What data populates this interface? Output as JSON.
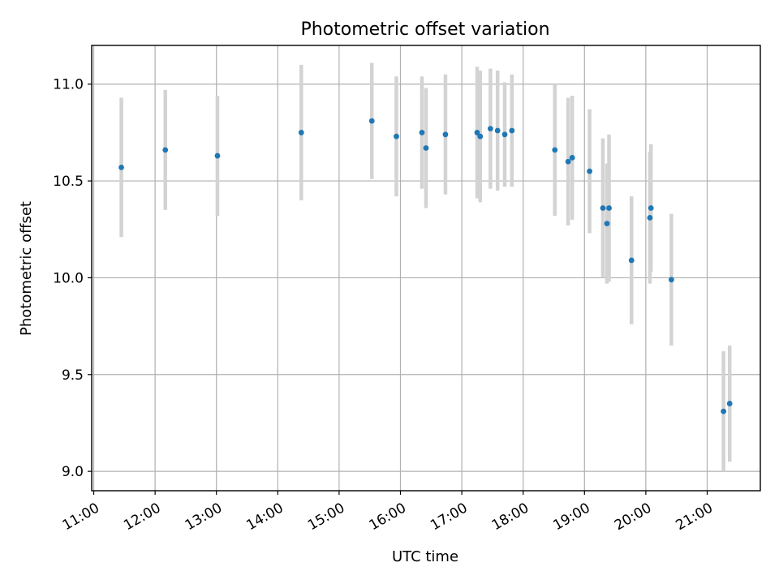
{
  "chart_data": {
    "type": "scatter",
    "title": "Photometric offset variation",
    "xlabel": "UTC time",
    "ylabel": "Photometric offset",
    "xlim": [
      "10:58",
      "21:52"
    ],
    "ylim": [
      8.9,
      11.2
    ],
    "x_ticks": [
      "11:00",
      "12:00",
      "13:00",
      "14:00",
      "15:00",
      "16:00",
      "17:00",
      "18:00",
      "19:00",
      "20:00",
      "21:00"
    ],
    "y_ticks": [
      "9.0",
      "9.5",
      "10.0",
      "10.5",
      "11.0"
    ],
    "grid": true,
    "error_bars": true,
    "points": [
      {
        "time": "11:27",
        "y": 10.57,
        "err": 0.36
      },
      {
        "time": "12:10",
        "y": 10.66,
        "err": 0.31
      },
      {
        "time": "13:01",
        "y": 10.63,
        "err": 0.31
      },
      {
        "time": "14:23",
        "y": 10.75,
        "err": 0.35
      },
      {
        "time": "15:32",
        "y": 10.81,
        "err": 0.3
      },
      {
        "time": "15:56",
        "y": 10.73,
        "err": 0.31
      },
      {
        "time": "16:21",
        "y": 10.75,
        "err": 0.29
      },
      {
        "time": "16:25",
        "y": 10.67,
        "err": 0.31
      },
      {
        "time": "16:44",
        "y": 10.74,
        "err": 0.31
      },
      {
        "time": "17:15",
        "y": 10.75,
        "err": 0.34
      },
      {
        "time": "17:18",
        "y": 10.73,
        "err": 0.34
      },
      {
        "time": "17:28",
        "y": 10.77,
        "err": 0.31
      },
      {
        "time": "17:35",
        "y": 10.76,
        "err": 0.31
      },
      {
        "time": "17:42",
        "y": 10.74,
        "err": 0.27
      },
      {
        "time": "17:49",
        "y": 10.76,
        "err": 0.29
      },
      {
        "time": "18:31",
        "y": 10.66,
        "err": 0.34
      },
      {
        "time": "18:44",
        "y": 10.6,
        "err": 0.33
      },
      {
        "time": "18:48",
        "y": 10.62,
        "err": 0.32
      },
      {
        "time": "19:05",
        "y": 10.55,
        "err": 0.32
      },
      {
        "time": "19:18",
        "y": 10.36,
        "err": 0.36
      },
      {
        "time": "19:22",
        "y": 10.28,
        "err": 0.31
      },
      {
        "time": "19:24",
        "y": 10.36,
        "err": 0.38
      },
      {
        "time": "19:46",
        "y": 10.09,
        "err": 0.33
      },
      {
        "time": "20:04",
        "y": 10.31,
        "err": 0.34
      },
      {
        "time": "20:05",
        "y": 10.36,
        "err": 0.33
      },
      {
        "time": "20:25",
        "y": 9.99,
        "err": 0.34
      },
      {
        "time": "21:16",
        "y": 9.31,
        "err": 0.31
      },
      {
        "time": "21:22",
        "y": 9.35,
        "err": 0.3
      }
    ],
    "colors": {
      "points": "#1f77b4",
      "error_bars": "#d3d3d3",
      "grid": "#b0b0b0"
    }
  }
}
